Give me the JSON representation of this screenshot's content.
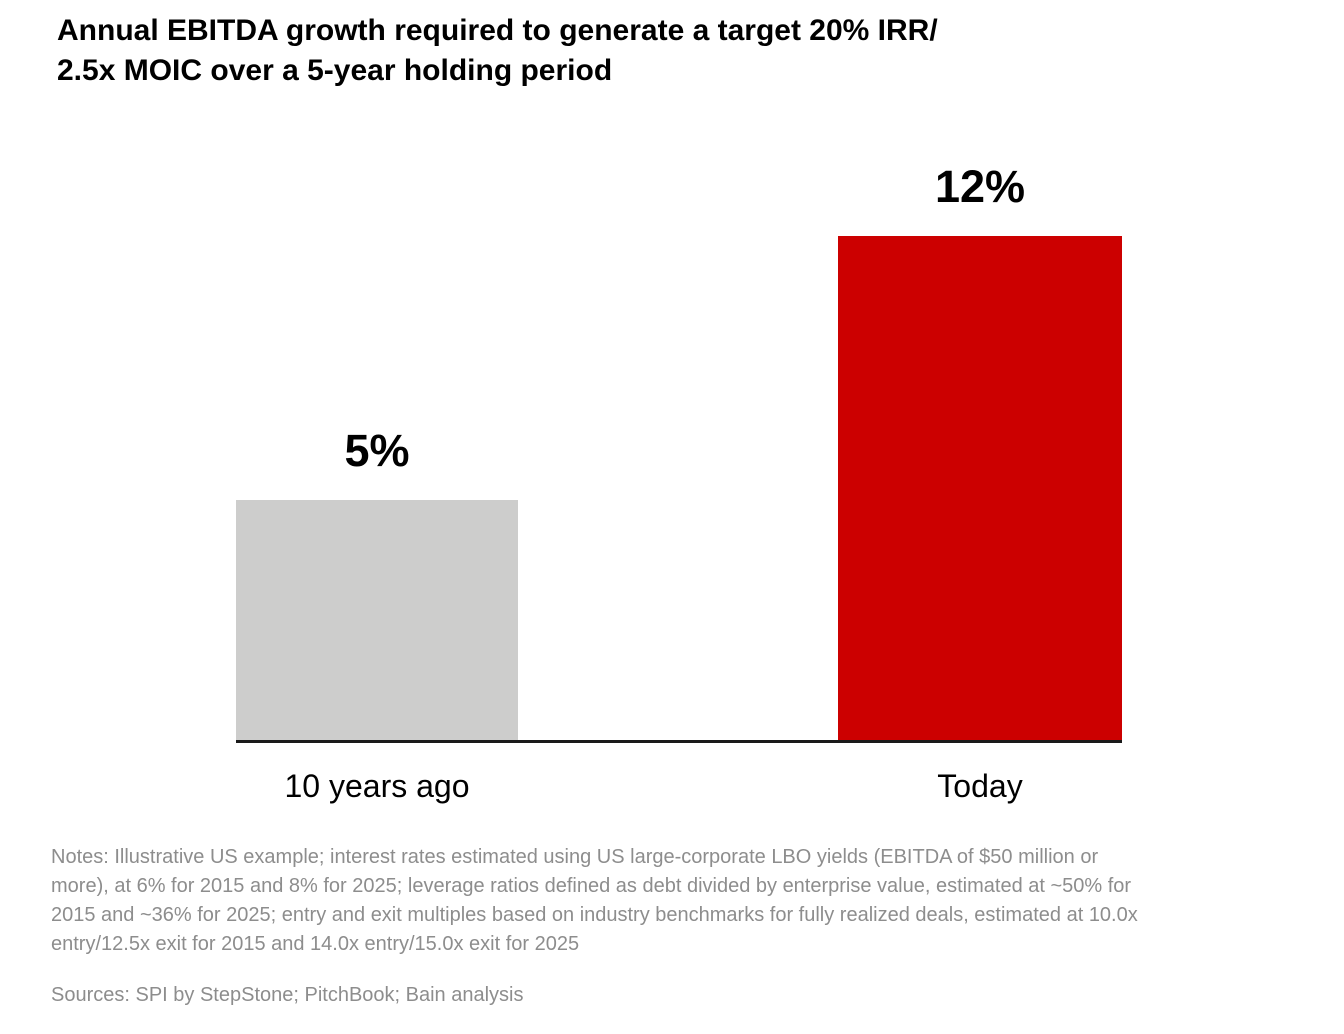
{
  "page": {
    "title_line1": "Annual EBITDA growth required to generate a target 20% IRR/",
    "title_line2": "2.5x MOIC over a 5-year holding period"
  },
  "chart_data": {
    "type": "bar",
    "title": "Annual EBITDA growth required to generate a target 20% IRR/2.5x MOIC over a 5-year holding period",
    "categories": [
      "10 years ago",
      "Today"
    ],
    "values": [
      5,
      12
    ],
    "value_labels": [
      "5%",
      "12%"
    ],
    "bar_colors": [
      "#cdcdcc",
      "#cc0000"
    ],
    "xlabel": "",
    "ylabel": "",
    "ylim": [
      0,
      12
    ],
    "grid": false,
    "legend": false,
    "axis_color": "#1a1a1a"
  },
  "footer": {
    "notes_lines": [
      "Notes: Illustrative US example; interest rates estimated using US large-corporate LBO yields (EBITDA of $50 million or",
      "more), at 6% for 2015 and 8% for 2025; leverage ratios defined as debt divided by enterprise value, estimated at ~50% for",
      "2015 and ~36% for 2025; entry and exit multiples based on industry benchmarks for fully realized deals, estimated at 10.0x",
      "entry/12.5x exit for 2015 and 14.0x entry/15.0x exit for 2025"
    ],
    "sources": "Sources: SPI by StepStone; PitchBook; Bain analysis"
  },
  "colors": {
    "background": "#ffffff",
    "text": "#000000",
    "muted_text": "#8d8d8d",
    "bar_past": "#cdcdcc",
    "bar_today": "#cc0000",
    "axis": "#1a1a1a"
  }
}
